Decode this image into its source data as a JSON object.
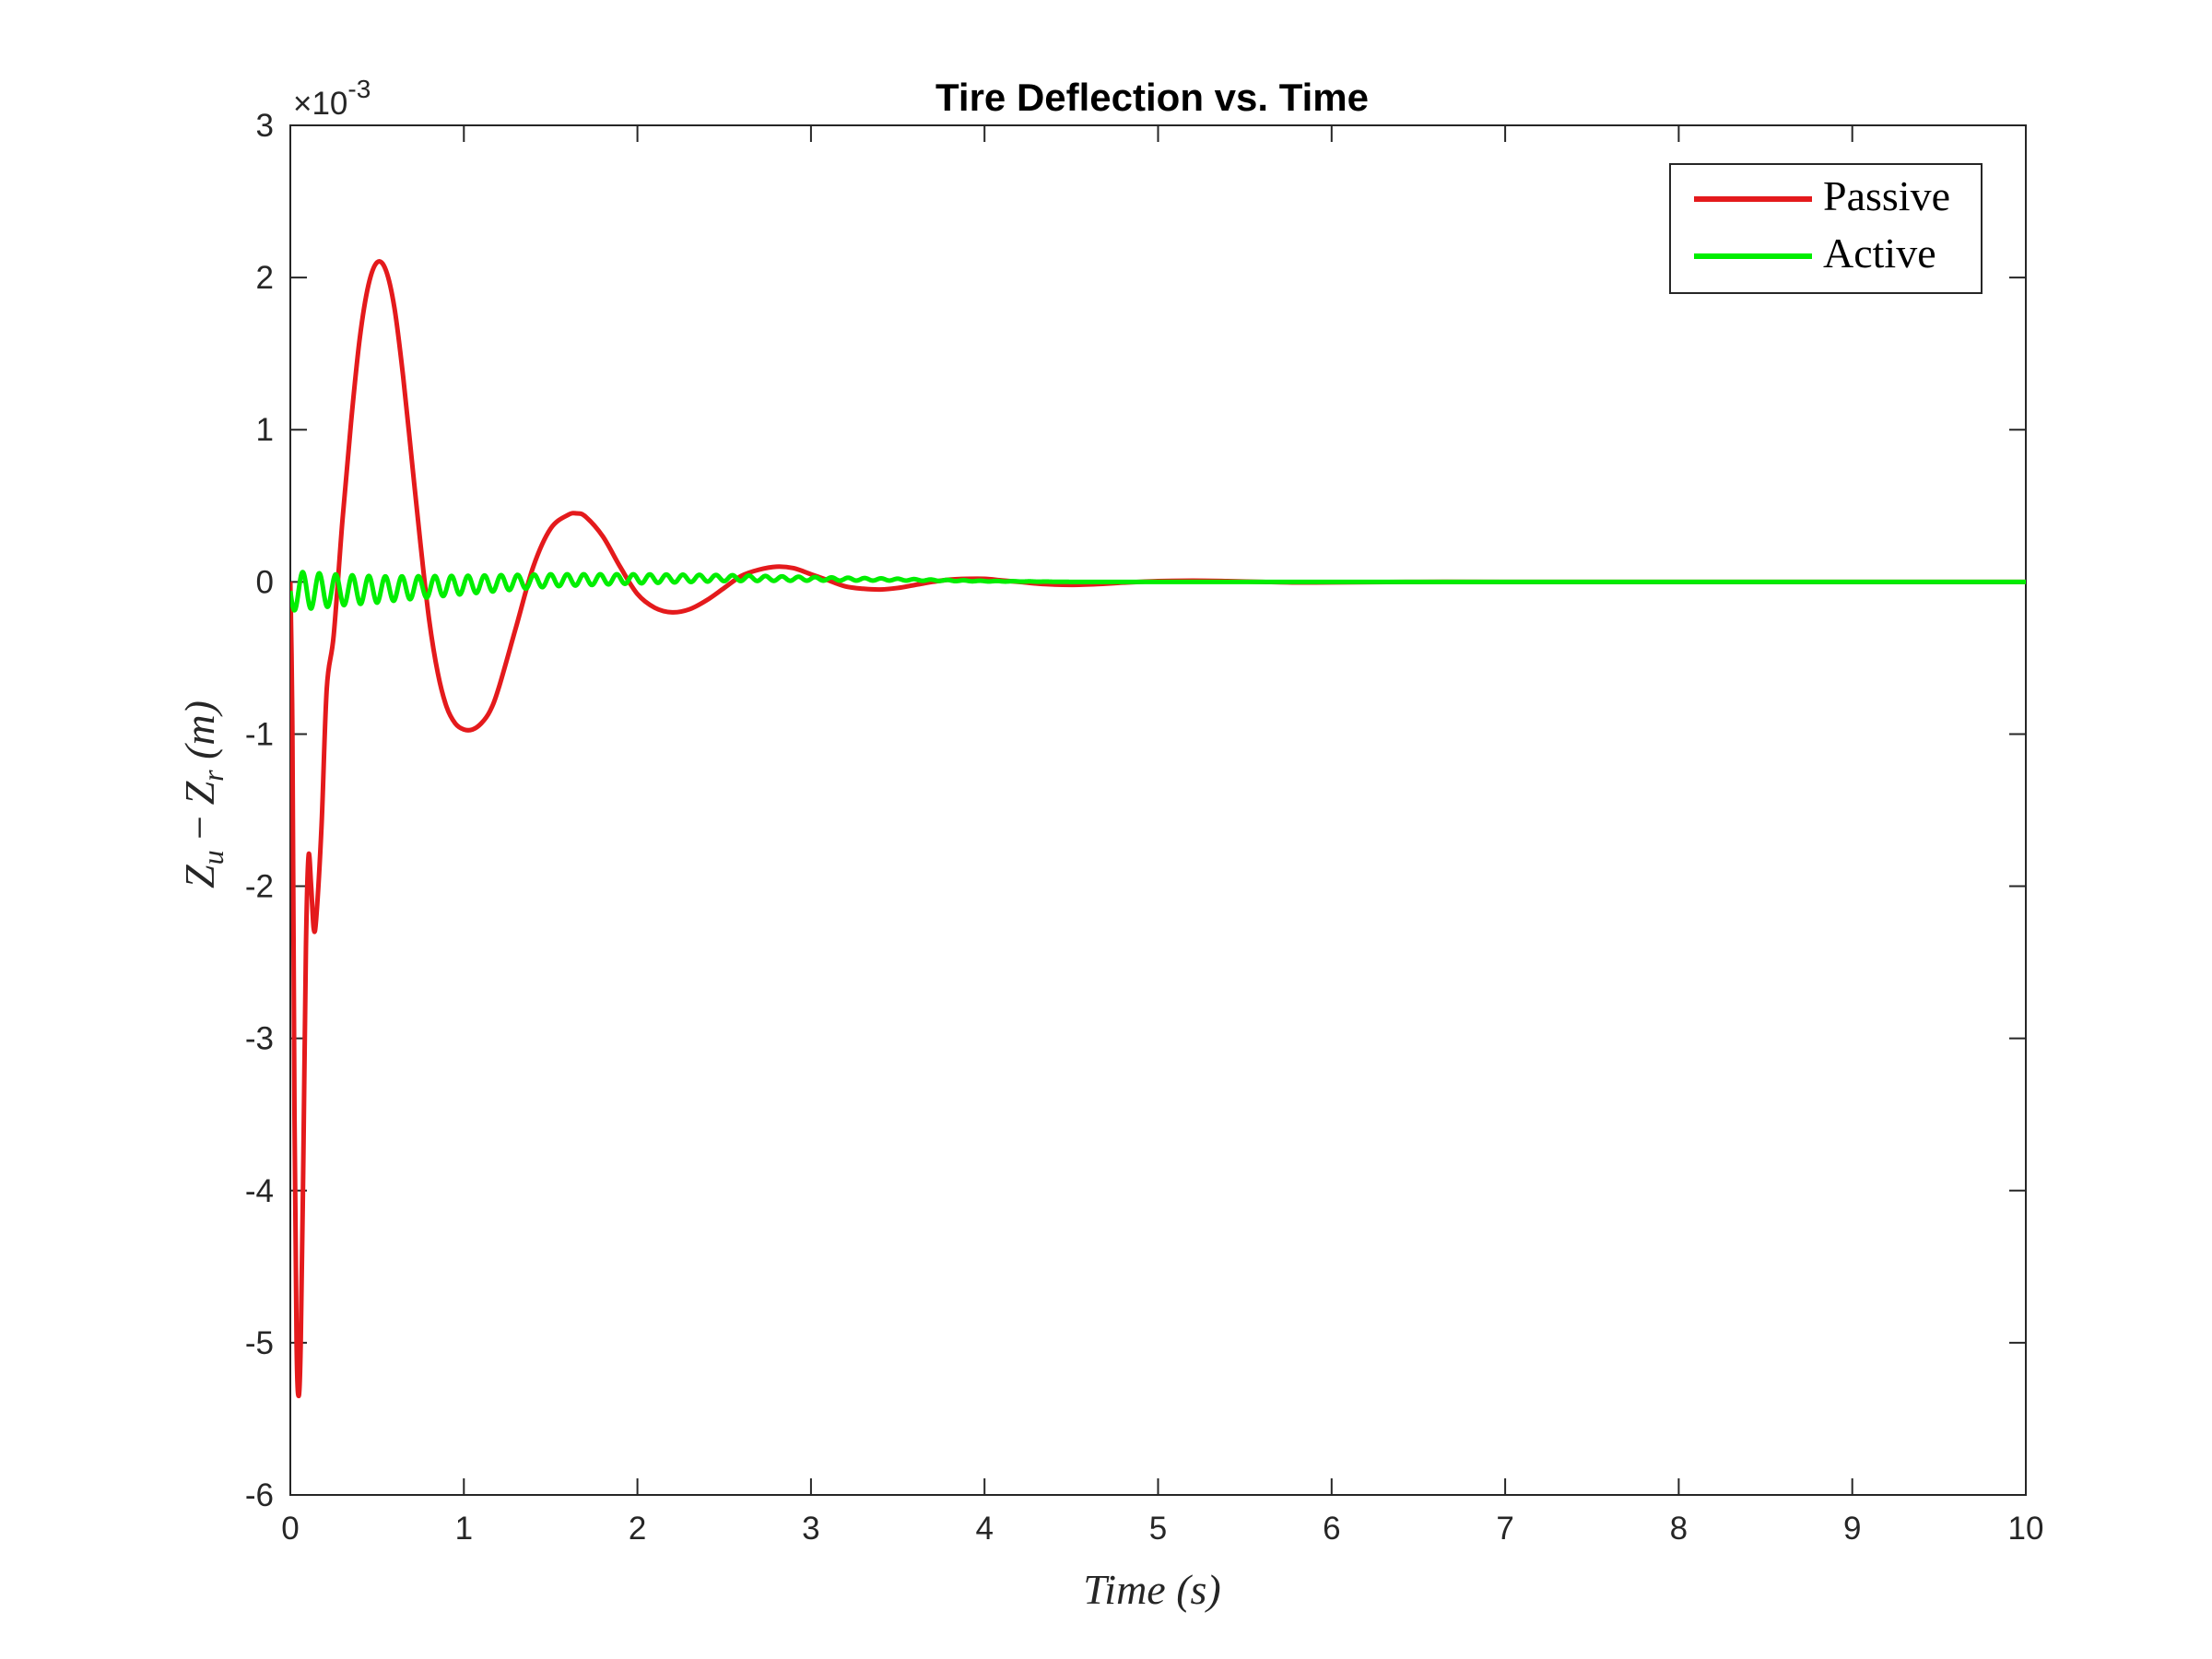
{
  "chart_data": {
    "type": "line",
    "title": "Tire Deflection vs. Time",
    "xlabel": "Time (s)",
    "ylabel": "Z_u − Z_r (m)",
    "ylabel_parts": {
      "a": "Z",
      "a_sub": "u",
      "op": " − ",
      "b": "Z",
      "b_sub": "r",
      "unit": " (m)"
    },
    "y_multiplier": "×10",
    "y_exponent": "-3",
    "xlim": [
      0,
      10
    ],
    "ylim": [
      -6,
      3
    ],
    "x_ticks": [
      "0",
      "1",
      "2",
      "3",
      "4",
      "5",
      "6",
      "7",
      "8",
      "9",
      "10"
    ],
    "y_ticks": [
      "3",
      "2",
      "1",
      "0",
      "-1",
      "-2",
      "-3",
      "-4",
      "-5",
      "-6"
    ],
    "y_scale_note": "values in units of 10^-3 m",
    "grid": false,
    "legend_position": "top-right",
    "series": [
      {
        "name": "Passive",
        "color": "#e41a1c",
        "points": [
          [
            0.0,
            0.0
          ],
          [
            0.012,
            -1.0
          ],
          [
            0.024,
            -3.5
          ],
          [
            0.036,
            -5.0
          ],
          [
            0.048,
            -5.35
          ],
          [
            0.06,
            -5.0
          ],
          [
            0.075,
            -3.8
          ],
          [
            0.09,
            -2.4
          ],
          [
            0.105,
            -1.8
          ],
          [
            0.12,
            -2.0
          ],
          [
            0.135,
            -2.28
          ],
          [
            0.15,
            -2.2
          ],
          [
            0.18,
            -1.6
          ],
          [
            0.21,
            -0.7
          ],
          [
            0.25,
            -0.35
          ],
          [
            0.3,
            0.4
          ],
          [
            0.35,
            1.05
          ],
          [
            0.4,
            1.6
          ],
          [
            0.45,
            1.95
          ],
          [
            0.5,
            2.1
          ],
          [
            0.55,
            2.05
          ],
          [
            0.6,
            1.8
          ],
          [
            0.65,
            1.35
          ],
          [
            0.7,
            0.8
          ],
          [
            0.75,
            0.25
          ],
          [
            0.8,
            -0.25
          ],
          [
            0.85,
            -0.6
          ],
          [
            0.9,
            -0.82
          ],
          [
            0.95,
            -0.93
          ],
          [
            1.0,
            -0.97
          ],
          [
            1.05,
            -0.97
          ],
          [
            1.1,
            -0.93
          ],
          [
            1.15,
            -0.85
          ],
          [
            1.2,
            -0.7
          ],
          [
            1.3,
            -0.3
          ],
          [
            1.4,
            0.1
          ],
          [
            1.5,
            0.35
          ],
          [
            1.6,
            0.44
          ],
          [
            1.65,
            0.45
          ],
          [
            1.7,
            0.43
          ],
          [
            1.8,
            0.3
          ],
          [
            1.9,
            0.1
          ],
          [
            2.0,
            -0.08
          ],
          [
            2.1,
            -0.17
          ],
          [
            2.2,
            -0.2
          ],
          [
            2.3,
            -0.18
          ],
          [
            2.4,
            -0.12
          ],
          [
            2.5,
            -0.04
          ],
          [
            2.6,
            0.04
          ],
          [
            2.7,
            0.08
          ],
          [
            2.8,
            0.1
          ],
          [
            2.9,
            0.09
          ],
          [
            3.0,
            0.05
          ],
          [
            3.1,
            0.01
          ],
          [
            3.2,
            -0.03
          ],
          [
            3.3,
            -0.045
          ],
          [
            3.4,
            -0.05
          ],
          [
            3.5,
            -0.04
          ],
          [
            3.6,
            -0.02
          ],
          [
            3.7,
            0.0
          ],
          [
            3.8,
            0.015
          ],
          [
            3.9,
            0.02
          ],
          [
            4.0,
            0.02
          ],
          [
            4.1,
            0.01
          ],
          [
            4.2,
            0.0
          ],
          [
            4.35,
            -0.015
          ],
          [
            4.5,
            -0.02
          ],
          [
            4.65,
            -0.015
          ],
          [
            4.8,
            -0.005
          ],
          [
            5.0,
            0.005
          ],
          [
            5.2,
            0.008
          ],
          [
            5.4,
            0.005
          ],
          [
            5.6,
            0.0
          ],
          [
            5.8,
            -0.004
          ],
          [
            6.0,
            -0.003
          ],
          [
            6.5,
            0.0
          ],
          [
            7.0,
            0.0
          ],
          [
            8.0,
            0.0
          ],
          [
            9.0,
            0.0
          ],
          [
            10.0,
            0.0
          ]
        ]
      },
      {
        "name": "Active",
        "color": "#00ee00",
        "oscillation": {
          "frequency_hz": 10.5,
          "envelope": [
            [
              0.0,
              0.13
            ],
            [
              0.3,
              0.1
            ],
            [
              0.6,
              0.08
            ],
            [
              1.0,
              0.06
            ],
            [
              1.5,
              0.04
            ],
            [
              2.0,
              0.03
            ],
            [
              2.5,
              0.02
            ],
            [
              3.0,
              0.012
            ],
            [
              3.5,
              0.006
            ],
            [
              4.0,
              0.002
            ],
            [
              4.5,
              0.0
            ],
            [
              10.0,
              0.0
            ]
          ],
          "baseline": [
            [
              0.0,
              -0.06
            ],
            [
              0.5,
              -0.05
            ],
            [
              1.0,
              -0.02
            ],
            [
              1.5,
              0.01
            ],
            [
              2.0,
              0.02
            ],
            [
              2.5,
              0.025
            ],
            [
              3.0,
              0.02
            ],
            [
              3.5,
              0.015
            ],
            [
              4.0,
              0.005
            ],
            [
              4.5,
              0.0
            ],
            [
              10.0,
              0.0
            ]
          ]
        }
      }
    ]
  }
}
